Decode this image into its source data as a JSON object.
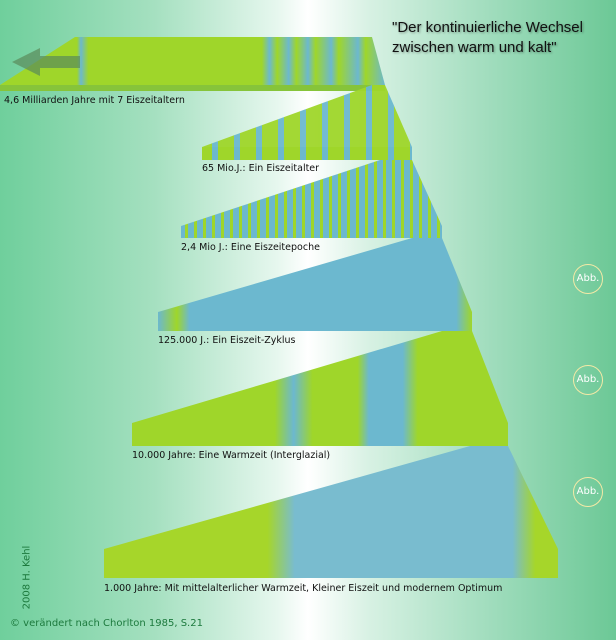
{
  "title": "\"Der kontinuierliche Wechsel zwischen warm und kalt\"",
  "title_lines": [
    "\"Der kontinuierliche Wechsel",
    "zwischen warm und kalt\""
  ],
  "levels": [
    {
      "label": "4,6 Milliarden Jahre mit 7 Eiszeitaltern"
    },
    {
      "label": "65 Mio.J.: Ein Eiszeitalter"
    },
    {
      "label": "2,4 Mio J.: Eine Eiszeitepoche"
    },
    {
      "label": "125.000 J.: Ein Eiszeit-Zyklus"
    },
    {
      "label": "10.000 Jahre: Eine Warmzeit (Interglazial)"
    },
    {
      "label": "1.000 Jahre: Mit mittelalterlicher Warmzeit, Kleiner Eiszeit und modernem Optimum"
    }
  ],
  "abb_buttons": [
    "Abb.",
    "Abb.",
    "Abb."
  ],
  "copyright": "2008 H. Kehl",
  "source": "© verändert nach Chorlton 1985, S.21",
  "colors": {
    "warm": "#9fd62a",
    "cold": "#6cb8cf",
    "background": "#6fcf9c"
  },
  "icons": [
    "arrow-left-icon"
  ]
}
